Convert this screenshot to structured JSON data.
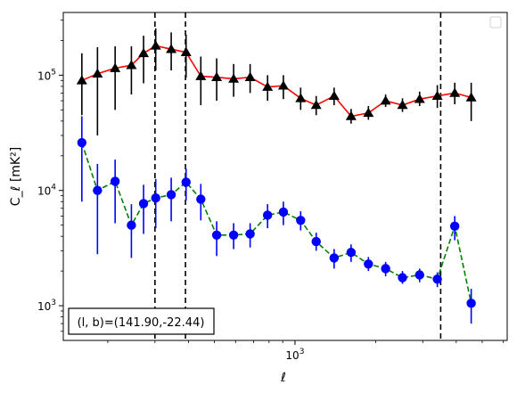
{
  "chart_data": {
    "type": "scatter",
    "xscale": "log",
    "yscale": "log",
    "xlim": [
      136.4,
      6200
    ],
    "ylim": [
      500,
      350000
    ],
    "xticks": [
      1000
    ],
    "xtick_labels": [
      "10^3"
    ],
    "yticks": [
      1000,
      10000,
      100000
    ],
    "ytick_labels": [
      "10^3",
      "10^4",
      "10^5"
    ],
    "xlabel": "ℓ",
    "ylabel": "C_ℓ [mK²]",
    "annotation": "(l, b)=(141.90,-22.44)",
    "legend": {
      "placement": "top-right",
      "entries": []
    },
    "vlines": [
      300,
      390,
      3500
    ],
    "series": [
      {
        "color": "#000000",
        "line_color": "#ff0000",
        "line_style": "solid",
        "marker": "triangle",
        "points": [
          {
            "x": 160,
            "y": 90000,
            "lo": 45000,
            "hi": 155000
          },
          {
            "x": 183,
            "y": 103000,
            "lo": 30000,
            "hi": 175000
          },
          {
            "x": 213,
            "y": 115000,
            "lo": 50000,
            "hi": 178000
          },
          {
            "x": 245,
            "y": 122000,
            "lo": 68000,
            "hi": 178000
          },
          {
            "x": 272,
            "y": 155000,
            "lo": 85000,
            "hi": 220000
          },
          {
            "x": 302,
            "y": 180000,
            "lo": 110000,
            "hi": 255000
          },
          {
            "x": 345,
            "y": 168000,
            "lo": 110000,
            "hi": 235000
          },
          {
            "x": 392,
            "y": 158000,
            "lo": 95000,
            "hi": 225000
          },
          {
            "x": 445,
            "y": 98000,
            "lo": 55000,
            "hi": 145000
          },
          {
            "x": 510,
            "y": 96000,
            "lo": 60000,
            "hi": 140000
          },
          {
            "x": 590,
            "y": 93000,
            "lo": 65000,
            "hi": 125000
          },
          {
            "x": 680,
            "y": 96000,
            "lo": 70000,
            "hi": 125000
          },
          {
            "x": 790,
            "y": 79000,
            "lo": 60000,
            "hi": 100000
          },
          {
            "x": 905,
            "y": 81000,
            "lo": 62000,
            "hi": 100000
          },
          {
            "x": 1050,
            "y": 63000,
            "lo": 50000,
            "hi": 78000
          },
          {
            "x": 1200,
            "y": 55000,
            "lo": 45000,
            "hi": 66000
          },
          {
            "x": 1400,
            "y": 66000,
            "lo": 55000,
            "hi": 78000
          },
          {
            "x": 1620,
            "y": 44000,
            "lo": 38000,
            "hi": 51000
          },
          {
            "x": 1880,
            "y": 47000,
            "lo": 41000,
            "hi": 54000
          },
          {
            "x": 2180,
            "y": 60000,
            "lo": 53000,
            "hi": 68000
          },
          {
            "x": 2520,
            "y": 55000,
            "lo": 48000,
            "hi": 63000
          },
          {
            "x": 2920,
            "y": 62000,
            "lo": 54000,
            "hi": 72000
          },
          {
            "x": 3400,
            "y": 66000,
            "lo": 52000,
            "hi": 82000
          },
          {
            "x": 3950,
            "y": 70000,
            "lo": 56000,
            "hi": 86000
          },
          {
            "x": 4550,
            "y": 64000,
            "lo": 40000,
            "hi": 86000
          }
        ]
      },
      {
        "color": "#0000ff",
        "line_color": "#008000",
        "line_style": "dashed",
        "marker": "circle",
        "points": [
          {
            "x": 160,
            "y": 26000,
            "lo": 8000,
            "hi": 44000
          },
          {
            "x": 183,
            "y": 10000,
            "lo": 2800,
            "hi": 17000
          },
          {
            "x": 213,
            "y": 12000,
            "lo": 5200,
            "hi": 18500
          },
          {
            "x": 245,
            "y": 5000,
            "lo": 2600,
            "hi": 7600
          },
          {
            "x": 272,
            "y": 7700,
            "lo": 4200,
            "hi": 11200
          },
          {
            "x": 302,
            "y": 8600,
            "lo": 4700,
            "hi": 12600
          },
          {
            "x": 345,
            "y": 9200,
            "lo": 5400,
            "hi": 12900
          },
          {
            "x": 392,
            "y": 11800,
            "lo": 8200,
            "hi": 15500
          },
          {
            "x": 445,
            "y": 8400,
            "lo": 5500,
            "hi": 11400
          },
          {
            "x": 510,
            "y": 4100,
            "lo": 2700,
            "hi": 5400
          },
          {
            "x": 590,
            "y": 4100,
            "lo": 3100,
            "hi": 5200
          },
          {
            "x": 680,
            "y": 4200,
            "lo": 3200,
            "hi": 5200
          },
          {
            "x": 790,
            "y": 6100,
            "lo": 4700,
            "hi": 7600
          },
          {
            "x": 905,
            "y": 6500,
            "lo": 5000,
            "hi": 8000
          },
          {
            "x": 1050,
            "y": 5500,
            "lo": 4500,
            "hi": 6600
          },
          {
            "x": 1200,
            "y": 3600,
            "lo": 3000,
            "hi": 4300
          },
          {
            "x": 1400,
            "y": 2600,
            "lo": 2100,
            "hi": 3100
          },
          {
            "x": 1620,
            "y": 2900,
            "lo": 2400,
            "hi": 3400
          },
          {
            "x": 1880,
            "y": 2300,
            "lo": 2000,
            "hi": 2650
          },
          {
            "x": 2180,
            "y": 2100,
            "lo": 1800,
            "hi": 2400
          },
          {
            "x": 2520,
            "y": 1750,
            "lo": 1550,
            "hi": 2000
          },
          {
            "x": 2920,
            "y": 1850,
            "lo": 1600,
            "hi": 2100
          },
          {
            "x": 3400,
            "y": 1700,
            "lo": 1450,
            "hi": 1950
          },
          {
            "x": 3950,
            "y": 4900,
            "lo": 3700,
            "hi": 6000
          },
          {
            "x": 4550,
            "y": 1050,
            "lo": 700,
            "hi": 1400
          }
        ]
      }
    ]
  }
}
